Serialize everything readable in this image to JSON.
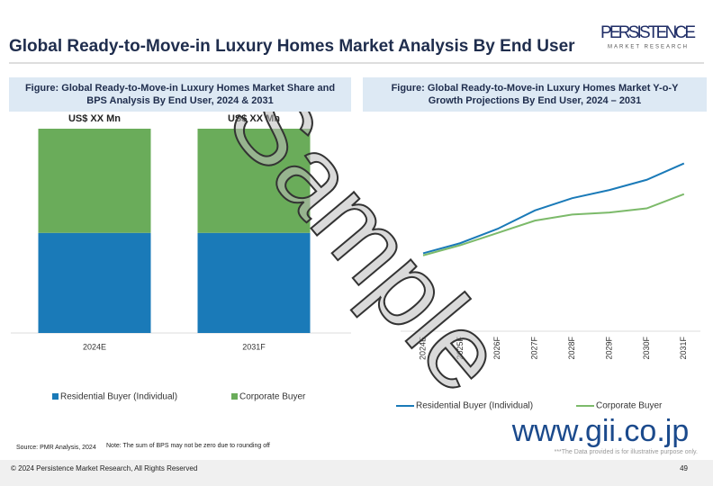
{
  "header": {
    "title": "Global Ready-to-Move-in Luxury Homes Market Analysis By End User",
    "logo": "PERSISTENCE",
    "logo_sub": "MARKET RESEARCH"
  },
  "chart_data": [
    {
      "type": "bar",
      "stacked": true,
      "title": "Figure: Global Ready-to-Move-in Luxury Homes  Market Share and BPS Analysis By End User, 2024 & 2031",
      "categories": [
        "2024E",
        "2031F"
      ],
      "series": [
        {
          "name": "Residential Buyer (Individual)",
          "color": "#1a7ab8",
          "values": [
            49,
            49
          ]
        },
        {
          "name": "Corporate Buyer",
          "color": "#6aac5a",
          "values": [
            51,
            51
          ]
        }
      ],
      "total_labels": [
        "US$ XX Mn",
        "US$ XX Mn"
      ],
      "ylim": [
        0,
        100
      ],
      "legend": "bottom"
    },
    {
      "type": "line",
      "title": "Figure: Global Ready-to-Move-in Luxury Homes  Market Y-o-Y Growth Projections By End User, 2024 – 2031",
      "categories": [
        "2024E",
        "2025F",
        "2026F",
        "2027F",
        "2028F",
        "2029F",
        "2030F",
        "2031F"
      ],
      "series": [
        {
          "name": "Residential Buyer (Individual)",
          "color": "#1a7ab8",
          "values": [
            39,
            44,
            51,
            60,
            66,
            70,
            75,
            83
          ]
        },
        {
          "name": "Corporate Buyer",
          "color": "#7cba6a",
          "values": [
            38,
            43,
            49,
            55,
            58,
            59,
            61,
            68
          ]
        }
      ],
      "ylim": [
        0,
        100
      ],
      "legend": "bottom"
    }
  ],
  "source": "Source: PMR Analysis, 2024",
  "note": "Note: The sum of BPS may not be zero due to rounding off",
  "watermark": "Sample",
  "website": "www.gii.co.jp",
  "disclaimer": "***The Data provided is for illustrative purpose only.",
  "footer": {
    "copyright": "© 2024 Persistence Market Research, All Rights Reserved",
    "page": "49"
  }
}
